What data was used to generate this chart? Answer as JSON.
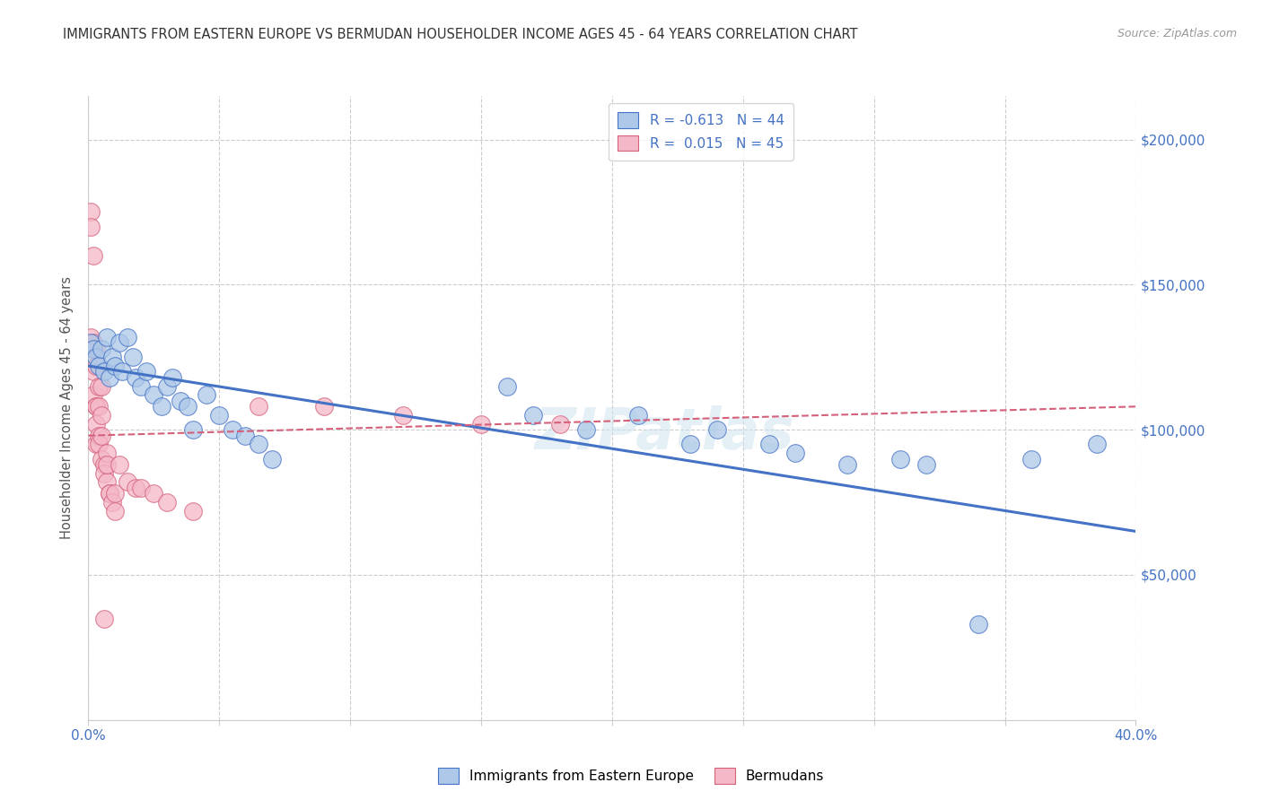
{
  "title": "IMMIGRANTS FROM EASTERN EUROPE VS BERMUDAN HOUSEHOLDER INCOME AGES 45 - 64 YEARS CORRELATION CHART",
  "source": "Source: ZipAtlas.com",
  "ylabel": "Householder Income Ages 45 - 64 years",
  "y_ticks": [
    0,
    50000,
    100000,
    150000,
    200000
  ],
  "y_tick_labels": [
    "",
    "$50,000",
    "$100,000",
    "$150,000",
    "$200,000"
  ],
  "xlim": [
    0.0,
    0.4
  ],
  "ylim": [
    0,
    215000
  ],
  "watermark": "ZIPatlas",
  "blue_R": "-0.613",
  "blue_N": "44",
  "pink_R": "0.015",
  "pink_N": "45",
  "blue_scatter_x": [
    0.001,
    0.002,
    0.003,
    0.004,
    0.005,
    0.006,
    0.007,
    0.008,
    0.009,
    0.01,
    0.012,
    0.013,
    0.015,
    0.017,
    0.018,
    0.02,
    0.022,
    0.025,
    0.028,
    0.03,
    0.032,
    0.035,
    0.038,
    0.04,
    0.045,
    0.05,
    0.055,
    0.06,
    0.065,
    0.07,
    0.16,
    0.17,
    0.19,
    0.21,
    0.23,
    0.24,
    0.26,
    0.27,
    0.29,
    0.31,
    0.32,
    0.34,
    0.36,
    0.385
  ],
  "blue_scatter_y": [
    130000,
    128000,
    125000,
    122000,
    128000,
    120000,
    132000,
    118000,
    125000,
    122000,
    130000,
    120000,
    132000,
    125000,
    118000,
    115000,
    120000,
    112000,
    108000,
    115000,
    118000,
    110000,
    108000,
    100000,
    112000,
    105000,
    100000,
    98000,
    95000,
    90000,
    115000,
    105000,
    100000,
    105000,
    95000,
    100000,
    95000,
    92000,
    88000,
    90000,
    88000,
    33000,
    90000,
    95000
  ],
  "pink_scatter_x": [
    0.001,
    0.001,
    0.001,
    0.002,
    0.002,
    0.002,
    0.002,
    0.002,
    0.003,
    0.003,
    0.003,
    0.003,
    0.003,
    0.003,
    0.004,
    0.004,
    0.004,
    0.004,
    0.005,
    0.005,
    0.005,
    0.005,
    0.006,
    0.006,
    0.007,
    0.007,
    0.007,
    0.008,
    0.008,
    0.009,
    0.01,
    0.01,
    0.012,
    0.015,
    0.018,
    0.02,
    0.025,
    0.03,
    0.04,
    0.065,
    0.09,
    0.12,
    0.15,
    0.18,
    0.006
  ],
  "pink_scatter_y": [
    175000,
    170000,
    132000,
    160000,
    130000,
    128000,
    120000,
    112000,
    108000,
    128000,
    122000,
    108000,
    102000,
    95000,
    115000,
    108000,
    98000,
    95000,
    115000,
    105000,
    98000,
    90000,
    88000,
    85000,
    92000,
    82000,
    88000,
    78000,
    78000,
    75000,
    78000,
    72000,
    88000,
    82000,
    80000,
    80000,
    78000,
    75000,
    72000,
    108000,
    108000,
    105000,
    102000,
    102000,
    35000
  ],
  "blue_line_x": [
    0.0,
    0.4
  ],
  "blue_line_y": [
    122000,
    65000
  ],
  "pink_line_x": [
    0.0,
    0.4
  ],
  "pink_line_y": [
    98000,
    108000
  ],
  "blue_color": "#adc8e8",
  "blue_line_color": "#4472c4",
  "blue_edge_color": "#4472c4",
  "pink_color": "#f4b8c8",
  "pink_line_color": "#d4607a",
  "pink_edge_color": "#d4607a",
  "background_color": "#ffffff",
  "grid_color": "#cccccc",
  "title_color": "#333333",
  "right_axis_label_color": "#4472c4",
  "bottom_axis_label_color": "#4472c4",
  "x_ticks": [
    0.0,
    0.05,
    0.1,
    0.15,
    0.2,
    0.25,
    0.3,
    0.35,
    0.4
  ],
  "x_tick_labels": [
    "0.0%",
    "",
    "",
    "",
    "",
    "",
    "",
    "",
    "40.0%"
  ]
}
